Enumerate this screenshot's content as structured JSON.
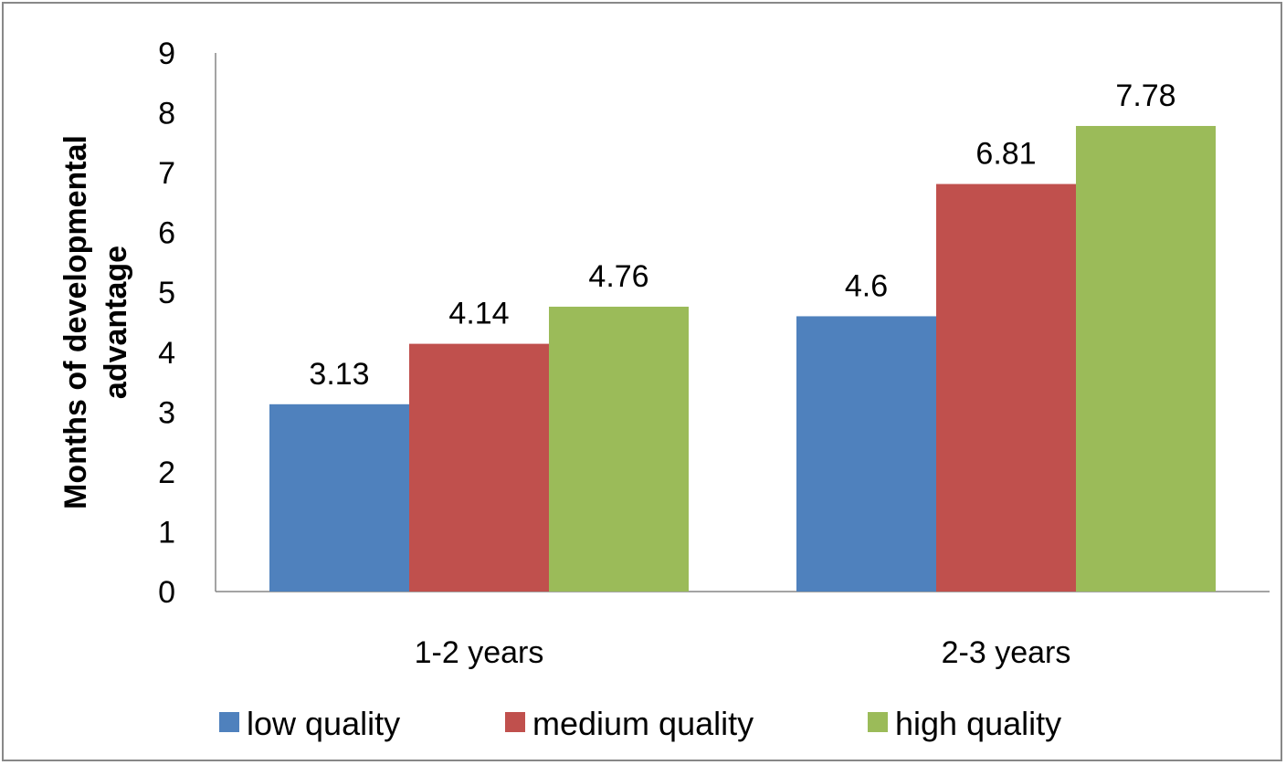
{
  "chart_data": {
    "type": "bar",
    "categories": [
      "1-2 years",
      "2-3 years"
    ],
    "series": [
      {
        "name": "low quality",
        "values": [
          3.13,
          4.6
        ],
        "color": "#4F81BD",
        "labels": [
          "3.13",
          "4.6"
        ]
      },
      {
        "name": "medium quality",
        "values": [
          4.14,
          6.81
        ],
        "color": "#C0504D",
        "labels": [
          "4.14",
          "6.81"
        ]
      },
      {
        "name": "high quality",
        "values": [
          4.76,
          7.78
        ],
        "color": "#9BBB59",
        "labels": [
          "4.76",
          "7.78"
        ]
      }
    ],
    "ylabel_lines": [
      "Months of developmental",
      "advantage"
    ],
    "xlabel": "",
    "ylim": [
      0,
      9
    ],
    "yticks": [
      "0",
      "1",
      "2",
      "3",
      "4",
      "5",
      "6",
      "7",
      "8",
      "9"
    ],
    "grid": false,
    "legend": "bottom"
  }
}
